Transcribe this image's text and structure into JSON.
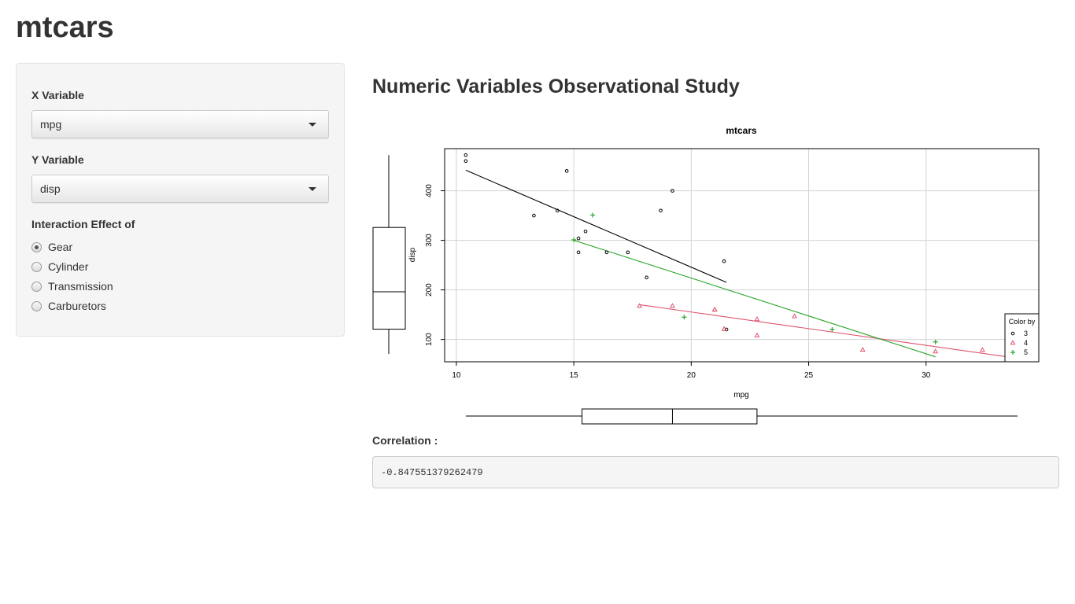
{
  "app": {
    "title": "mtcars"
  },
  "sidebar": {
    "x_label": "X Variable",
    "x_value": "mpg",
    "y_label": "Y Variable",
    "y_value": "disp",
    "interaction_label": "Interaction Effect of",
    "options": [
      {
        "label": "Gear",
        "checked": true
      },
      {
        "label": "Cylinder",
        "checked": false
      },
      {
        "label": "Transmission",
        "checked": false
      },
      {
        "label": "Carburetors",
        "checked": false
      }
    ]
  },
  "main": {
    "heading": "Numeric Variables Observational Study",
    "correlation_label": "Correlation :",
    "correlation_value": "-0.847551379262479"
  },
  "chart_data": {
    "type": "scatter",
    "title": "mtcars",
    "xlabel": "mpg",
    "ylabel": "disp",
    "xlim": [
      9.5,
      34.8
    ],
    "ylim": [
      55,
      485
    ],
    "xticks": [
      10,
      15,
      20,
      25,
      30
    ],
    "yticks": [
      100,
      200,
      300,
      400
    ],
    "grid": true,
    "legend": {
      "title": "Color by",
      "placement": "right"
    },
    "series": [
      {
        "name": "3",
        "color": "#000000",
        "marker": "circle",
        "points": [
          [
            21.4,
            258
          ],
          [
            18.7,
            360
          ],
          [
            18.1,
            225
          ],
          [
            14.3,
            360
          ],
          [
            16.4,
            275.8
          ],
          [
            17.3,
            275.8
          ],
          [
            15.2,
            275.8
          ],
          [
            10.4,
            472
          ],
          [
            10.4,
            460
          ],
          [
            14.7,
            440
          ],
          [
            15.5,
            318
          ],
          [
            15.2,
            304
          ],
          [
            13.3,
            350
          ],
          [
            19.2,
            400
          ],
          [
            21.5,
            120.1
          ]
        ],
        "fit": [
          [
            10.4,
            441.5
          ],
          [
            21.5,
            215.2
          ]
        ]
      },
      {
        "name": "4",
        "color": "#df536b",
        "marker": "triangle",
        "points": [
          [
            21.0,
            160
          ],
          [
            21.0,
            160
          ],
          [
            22.8,
            108
          ],
          [
            24.4,
            146.7
          ],
          [
            22.8,
            140.8
          ],
          [
            19.2,
            167.6
          ],
          [
            17.8,
            167.6
          ],
          [
            32.4,
            78.7
          ],
          [
            30.4,
            75.7
          ],
          [
            33.9,
            71.1
          ],
          [
            27.3,
            79
          ],
          [
            21.4,
            121
          ]
        ],
        "fit": [
          [
            17.8,
            170.2
          ],
          [
            33.9,
            62.0
          ]
        ]
      },
      {
        "name": "5",
        "color": "#28a428",
        "marker": "plus",
        "points": [
          [
            26.0,
            120.3
          ],
          [
            30.4,
            95.1
          ],
          [
            15.8,
            351
          ],
          [
            19.7,
            145
          ],
          [
            15.0,
            301
          ]
        ],
        "fit": [
          [
            15.0,
            300.2
          ],
          [
            30.4,
            65.0
          ]
        ]
      }
    ],
    "x_boxplot": {
      "min": 10.4,
      "q1": 15.35,
      "median": 19.2,
      "q3": 22.8,
      "max": 33.9
    },
    "y_boxplot": {
      "min": 71.1,
      "q1": 120.8,
      "median": 196.3,
      "q3": 326,
      "max": 472
    }
  }
}
